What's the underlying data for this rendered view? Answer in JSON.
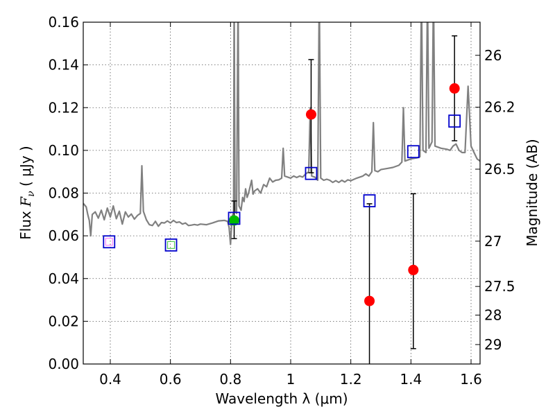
{
  "chart_data": {
    "type": "scatter",
    "xlabel": "Wavelength  λ (μm)",
    "ylabel": "Flux  F_ν  ( μJy )",
    "ylabel_parts": {
      "prefix": "Flux  ",
      "symbol": "F",
      "subscript": "ν",
      "suffix": "  ( μJy )"
    },
    "right_ylabel": "Magnitude (AB)",
    "xlim": [
      0.31,
      1.63
    ],
    "ylim": [
      0.0,
      0.16
    ],
    "grid": true,
    "x_ticks": [
      0.4,
      0.6,
      0.8,
      1.0,
      1.2,
      1.4,
      1.6
    ],
    "x_tick_labels": [
      "0.4",
      "0.6",
      "0.8",
      "1",
      "1.2",
      "1.4",
      "1.6"
    ],
    "y_ticks": [
      0.0,
      0.02,
      0.04,
      0.06,
      0.08,
      0.1,
      0.12,
      0.14,
      0.16
    ],
    "y_tick_labels": [
      "0.00",
      "0.02",
      "0.04",
      "0.06",
      "0.08",
      "0.10",
      "0.12",
      "0.14",
      "0.16"
    ],
    "magnitude_ticks": [
      {
        "label": "26",
        "flux": 0.1445
      },
      {
        "label": "26.2",
        "flux": 0.1202
      },
      {
        "label": "26.5",
        "flux": 0.0912
      },
      {
        "label": "27",
        "flux": 0.0575
      },
      {
        "label": "27.5",
        "flux": 0.0363
      },
      {
        "label": "28",
        "flux": 0.0229
      },
      {
        "label": "29",
        "flux": 0.0091
      }
    ],
    "template_spectrum": {
      "name": "model spectrum",
      "color": "#808080",
      "points": [
        [
          0.31,
          0.0752
        ],
        [
          0.32,
          0.0735
        ],
        [
          0.325,
          0.07
        ],
        [
          0.33,
          0.0672
        ],
        [
          0.335,
          0.06
        ],
        [
          0.34,
          0.07
        ],
        [
          0.35,
          0.0712
        ],
        [
          0.36,
          0.0683
        ],
        [
          0.37,
          0.072
        ],
        [
          0.38,
          0.0675
        ],
        [
          0.39,
          0.073
        ],
        [
          0.4,
          0.0688
        ],
        [
          0.41,
          0.074
        ],
        [
          0.42,
          0.068
        ],
        [
          0.43,
          0.0715
        ],
        [
          0.44,
          0.0655
        ],
        [
          0.45,
          0.0712
        ],
        [
          0.46,
          0.0688
        ],
        [
          0.47,
          0.0702
        ],
        [
          0.48,
          0.0678
        ],
        [
          0.49,
          0.0695
        ],
        [
          0.5,
          0.0705
        ],
        [
          0.505,
          0.0928
        ],
        [
          0.51,
          0.0715
        ],
        [
          0.52,
          0.0675
        ],
        [
          0.53,
          0.0652
        ],
        [
          0.54,
          0.0648
        ],
        [
          0.55,
          0.0668
        ],
        [
          0.56,
          0.0645
        ],
        [
          0.57,
          0.0662
        ],
        [
          0.58,
          0.066
        ],
        [
          0.59,
          0.067
        ],
        [
          0.6,
          0.066
        ],
        [
          0.61,
          0.0672
        ],
        [
          0.62,
          0.0662
        ],
        [
          0.63,
          0.0665
        ],
        [
          0.64,
          0.0655
        ],
        [
          0.65,
          0.066
        ],
        [
          0.66,
          0.0648
        ],
        [
          0.67,
          0.065
        ],
        [
          0.68,
          0.0653
        ],
        [
          0.69,
          0.065
        ],
        [
          0.7,
          0.0655
        ],
        [
          0.72,
          0.0652
        ],
        [
          0.74,
          0.066
        ],
        [
          0.76,
          0.067
        ],
        [
          0.78,
          0.0672
        ],
        [
          0.79,
          0.0668
        ],
        [
          0.795,
          0.064
        ],
        [
          0.8,
          0.056
        ],
        [
          0.805,
          0.069
        ],
        [
          0.81,
          0.071
        ],
        [
          0.812,
          0.175
        ],
        [
          0.815,
          0.072
        ],
        [
          0.82,
          0.0705
        ],
        [
          0.825,
          0.175
        ],
        [
          0.828,
          0.074
        ],
        [
          0.835,
          0.072
        ],
        [
          0.84,
          0.078
        ],
        [
          0.845,
          0.076
        ],
        [
          0.85,
          0.082
        ],
        [
          0.855,
          0.078
        ],
        [
          0.86,
          0.08
        ],
        [
          0.87,
          0.086
        ],
        [
          0.875,
          0.0795
        ],
        [
          0.88,
          0.081
        ],
        [
          0.89,
          0.082
        ],
        [
          0.9,
          0.08
        ],
        [
          0.91,
          0.084
        ],
        [
          0.92,
          0.083
        ],
        [
          0.93,
          0.087
        ],
        [
          0.94,
          0.0852
        ],
        [
          0.95,
          0.086
        ],
        [
          0.96,
          0.0862
        ],
        [
          0.97,
          0.087
        ],
        [
          0.975,
          0.101
        ],
        [
          0.98,
          0.088
        ],
        [
          0.99,
          0.0875
        ],
        [
          1.0,
          0.087
        ],
        [
          1.01,
          0.088
        ],
        [
          1.02,
          0.0873
        ],
        [
          1.03,
          0.088
        ],
        [
          1.04,
          0.0875
        ],
        [
          1.05,
          0.089
        ],
        [
          1.06,
          0.09
        ],
        [
          1.065,
          0.12
        ],
        [
          1.07,
          0.088
        ],
        [
          1.08,
          0.0875
        ],
        [
          1.09,
          0.086
        ],
        [
          1.095,
          0.175
        ],
        [
          1.1,
          0.087
        ],
        [
          1.11,
          0.086
        ],
        [
          1.12,
          0.0865
        ],
        [
          1.13,
          0.086
        ],
        [
          1.14,
          0.085
        ],
        [
          1.15,
          0.0858
        ],
        [
          1.16,
          0.085
        ],
        [
          1.17,
          0.086
        ],
        [
          1.18,
          0.0852
        ],
        [
          1.19,
          0.0862
        ],
        [
          1.2,
          0.0858
        ],
        [
          1.22,
          0.087
        ],
        [
          1.24,
          0.088
        ],
        [
          1.25,
          0.089
        ],
        [
          1.26,
          0.088
        ],
        [
          1.27,
          0.09
        ],
        [
          1.275,
          0.113
        ],
        [
          1.28,
          0.0905
        ],
        [
          1.29,
          0.09
        ],
        [
          1.3,
          0.091
        ],
        [
          1.32,
          0.0915
        ],
        [
          1.34,
          0.092
        ],
        [
          1.36,
          0.093
        ],
        [
          1.37,
          0.0945
        ],
        [
          1.375,
          0.12
        ],
        [
          1.38,
          0.095
        ],
        [
          1.4,
          0.096
        ],
        [
          1.42,
          0.0965
        ],
        [
          1.43,
          0.097
        ],
        [
          1.435,
          0.175
        ],
        [
          1.44,
          0.1
        ],
        [
          1.45,
          0.099
        ],
        [
          1.455,
          0.175
        ],
        [
          1.46,
          0.101
        ],
        [
          1.47,
          0.104
        ],
        [
          1.475,
          0.175
        ],
        [
          1.48,
          0.102
        ],
        [
          1.5,
          0.101
        ],
        [
          1.52,
          0.1005
        ],
        [
          1.53,
          0.1
        ],
        [
          1.54,
          0.102
        ],
        [
          1.55,
          0.103
        ],
        [
          1.56,
          0.1
        ],
        [
          1.57,
          0.099
        ],
        [
          1.58,
          0.099
        ],
        [
          1.59,
          0.13
        ],
        [
          1.6,
          0.102
        ],
        [
          1.61,
          0.099
        ],
        [
          1.62,
          0.096
        ],
        [
          1.63,
          0.095
        ]
      ]
    },
    "model_photometry": {
      "name": "model fluxes",
      "color": "#0000cc",
      "points": [
        [
          0.396,
          0.0572
        ],
        [
          0.602,
          0.0557
        ],
        [
          0.812,
          0.0682
        ],
        [
          1.068,
          0.0892
        ],
        [
          1.262,
          0.0764
        ],
        [
          1.408,
          0.0994
        ],
        [
          1.545,
          0.1137
        ]
      ]
    },
    "observed_photometry": [
      {
        "x": 0.396,
        "y": 0.0572,
        "yerr_low": null,
        "yerr_high": null,
        "color": "#ff80ff",
        "marker": "square"
      },
      {
        "x": 0.602,
        "y": 0.0557,
        "yerr_low": null,
        "yerr_high": null,
        "color": "#55cc55",
        "marker": "square"
      },
      {
        "x": 0.812,
        "y": 0.0672,
        "yerr_low": 0.0587,
        "yerr_high": 0.0763,
        "color": "#00bb00",
        "marker": "circle"
      },
      {
        "x": 1.068,
        "y": 0.1168,
        "yerr_low": 0.0895,
        "yerr_high": 0.1425,
        "color": "#ff0000",
        "marker": "circle"
      },
      {
        "x": 1.262,
        "y": 0.0295,
        "yerr_low": 0.0,
        "yerr_high": 0.075,
        "color": "#ff0000",
        "marker": "circle"
      },
      {
        "x": 1.408,
        "y": 0.044,
        "yerr_low": 0.0072,
        "yerr_high": 0.0797,
        "color": "#ff0000",
        "marker": "circle"
      },
      {
        "x": 1.545,
        "y": 0.129,
        "yerr_low": 0.1045,
        "yerr_high": 0.1536,
        "color": "#ff0000",
        "marker": "circle"
      }
    ]
  }
}
